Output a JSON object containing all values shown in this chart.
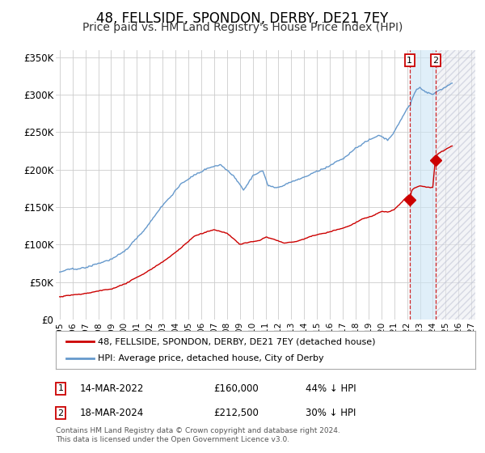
{
  "title": "48, FELLSIDE, SPONDON, DERBY, DE21 7EY",
  "subtitle": "Price paid vs. HM Land Registry's House Price Index (HPI)",
  "title_fontsize": 12,
  "subtitle_fontsize": 10,
  "ylim": [
    0,
    360000
  ],
  "yticks": [
    0,
    50000,
    100000,
    150000,
    200000,
    250000,
    300000,
    350000
  ],
  "ytick_labels": [
    "£0",
    "£50K",
    "£100K",
    "£150K",
    "£200K",
    "£250K",
    "£300K",
    "£350K"
  ],
  "x_start_year": 1995,
  "x_end_year": 2027,
  "xtick_years": [
    1995,
    1996,
    1997,
    1998,
    1999,
    2000,
    2001,
    2002,
    2003,
    2004,
    2005,
    2006,
    2007,
    2008,
    2009,
    2010,
    2011,
    2012,
    2013,
    2014,
    2015,
    2016,
    2017,
    2018,
    2019,
    2020,
    2021,
    2022,
    2023,
    2024,
    2025,
    2026,
    2027
  ],
  "hpi_color": "#6699cc",
  "price_color": "#cc0000",
  "marker_color": "#cc0000",
  "sale1_date": 2022.2,
  "sale1_price": 160000,
  "sale1_label": "1",
  "sale2_date": 2024.22,
  "sale2_price": 212500,
  "sale2_label": "2",
  "shade_start": 2022.2,
  "shade_end": 2024.22,
  "legend_line1": "48, FELLSIDE, SPONDON, DERBY, DE21 7EY (detached house)",
  "legend_line2": "HPI: Average price, detached house, City of Derby",
  "note1_box": "1",
  "note1_date": "14-MAR-2022",
  "note1_price": "£160,000",
  "note1_pct": "44% ↓ HPI",
  "note2_box": "2",
  "note2_date": "18-MAR-2024",
  "note2_price": "£212,500",
  "note2_pct": "30% ↓ HPI",
  "footer": "Contains HM Land Registry data © Crown copyright and database right 2024.\nThis data is licensed under the Open Government Licence v3.0.",
  "bg_color": "#ffffff",
  "grid_color": "#cccccc"
}
